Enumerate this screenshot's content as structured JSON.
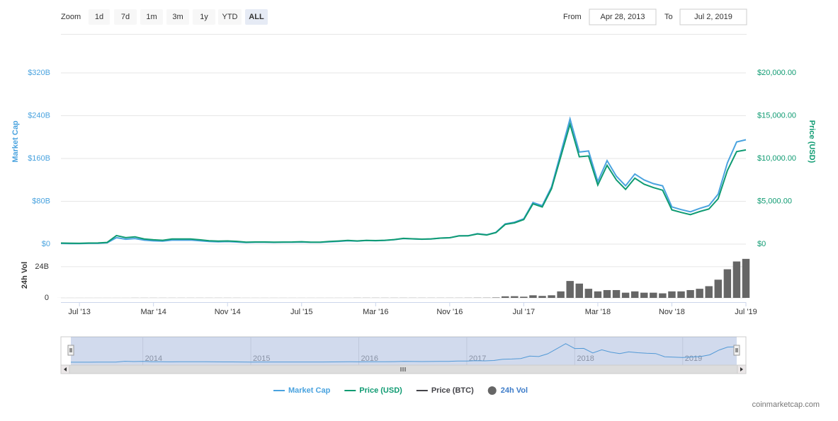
{
  "toolbar": {
    "zoom_label": "Zoom",
    "buttons": [
      "1d",
      "7d",
      "1m",
      "3m",
      "1y",
      "YTD",
      "ALL"
    ],
    "from_label": "From",
    "from_value": "Apr 28, 2013",
    "to_label": "To",
    "to_value": "Jul 2, 2019"
  },
  "credits": "coinmarketcap.com",
  "chart_data": {
    "type": "line",
    "x": [
      "2013-05",
      "2013-06",
      "2013-07",
      "2013-08",
      "2013-09",
      "2013-10",
      "2013-11",
      "2013-12",
      "2014-01",
      "2014-02",
      "2014-03",
      "2014-04",
      "2014-05",
      "2014-06",
      "2014-07",
      "2014-08",
      "2014-09",
      "2014-10",
      "2014-11",
      "2014-12",
      "2015-01",
      "2015-02",
      "2015-03",
      "2015-04",
      "2015-05",
      "2015-06",
      "2015-07",
      "2015-08",
      "2015-09",
      "2015-10",
      "2015-11",
      "2015-12",
      "2016-01",
      "2016-02",
      "2016-03",
      "2016-04",
      "2016-05",
      "2016-06",
      "2016-07",
      "2016-08",
      "2016-09",
      "2016-10",
      "2016-11",
      "2016-12",
      "2017-01",
      "2017-02",
      "2017-03",
      "2017-04",
      "2017-05",
      "2017-06",
      "2017-07",
      "2017-08",
      "2017-09",
      "2017-10",
      "2017-11",
      "2017-12",
      "2018-01",
      "2018-02",
      "2018-03",
      "2018-04",
      "2018-05",
      "2018-06",
      "2018-07",
      "2018-08",
      "2018-09",
      "2018-10",
      "2018-11",
      "2018-12",
      "2019-01",
      "2019-02",
      "2019-03",
      "2019-04",
      "2019-05",
      "2019-06",
      "2019-07"
    ],
    "xlim": [
      "2013-05",
      "2019-07"
    ],
    "xticks": [
      {
        "value": "2013-07",
        "label": "Jul '13"
      },
      {
        "value": "2014-03",
        "label": "Mar '14"
      },
      {
        "value": "2014-11",
        "label": "Nov '14"
      },
      {
        "value": "2015-07",
        "label": "Jul '15"
      },
      {
        "value": "2016-03",
        "label": "Mar '16"
      },
      {
        "value": "2016-11",
        "label": "Nov '16"
      },
      {
        "value": "2017-07",
        "label": "Jul '17"
      },
      {
        "value": "2018-03",
        "label": "Mar '18"
      },
      {
        "value": "2018-11",
        "label": "Nov '18"
      },
      {
        "value": "2019-07",
        "label": "Jul '19"
      }
    ],
    "ylabel": "Market Cap",
    "ylim": [
      0,
      320
    ],
    "yticks": [
      {
        "value": 0,
        "label": "$0"
      },
      {
        "value": 80,
        "label": "$80B"
      },
      {
        "value": 160,
        "label": "$160B"
      },
      {
        "value": 240,
        "label": "$240B"
      },
      {
        "value": 320,
        "label": "$320B"
      }
    ],
    "y2label": "Price (USD)",
    "y2lim": [
      0,
      20000
    ],
    "y2ticks": [
      {
        "value": 0,
        "label": "$0"
      },
      {
        "value": 5000,
        "label": "$5,000.00"
      },
      {
        "value": 10000,
        "label": "$10,000.00"
      },
      {
        "value": 15000,
        "label": "$15,000.00"
      },
      {
        "value": 20000,
        "label": "$20,000.00"
      }
    ],
    "y3label": "24h Vol",
    "y3lim": [
      0,
      37
    ],
    "y3ticks": [
      0,
      {
        "value": 24,
        "label": "24B"
      }
    ],
    "grid": true,
    "series": [
      {
        "name": "Market Cap",
        "color": "#4aa3df",
        "axis": "y",
        "values": [
          1.3,
          1.1,
          1.1,
          1.4,
          1.5,
          2.4,
          12,
          9.1,
          10.4,
          7.4,
          6.1,
          5.5,
          7.4,
          7.4,
          7.5,
          6.2,
          5.0,
          4.4,
          4.7,
          4.0,
          3.0,
          3.5,
          3.5,
          3.2,
          3.4,
          3.5,
          3.9,
          3.3,
          3.3,
          4.4,
          5.2,
          6.3,
          5.6,
          6.7,
          6.4,
          7.0,
          8.3,
          10.5,
          9.8,
          9.1,
          9.7,
          11.2,
          11.9,
          15.5,
          15.8,
          19.4,
          17.5,
          22.1,
          37.8,
          40.8,
          47.3,
          77.7,
          71.9,
          107,
          170,
          234,
          172,
          174,
          117,
          156,
          127,
          109,
          131,
          120,
          113,
          109,
          69.5,
          64.5,
          60.4,
          66.6,
          72.0,
          93.3,
          152,
          191,
          195
        ]
      },
      {
        "name": "Price (USD)",
        "color": "#0f9b72",
        "axis": "y2",
        "values": [
          120,
          100,
          95,
          120,
          130,
          200,
          1000,
          750,
          850,
          600,
          500,
          450,
          600,
          600,
          600,
          500,
          400,
          350,
          375,
          320,
          220,
          250,
          250,
          230,
          240,
          250,
          280,
          230,
          235,
          310,
          360,
          430,
          370,
          440,
          415,
          450,
          530,
          670,
          620,
          575,
          610,
          700,
          740,
          960,
          970,
          1190,
          1070,
          1350,
          2300,
          2480,
          2870,
          4700,
          4340,
          6470,
          10200,
          14000,
          10200,
          10300,
          6900,
          9200,
          7500,
          6400,
          7700,
          7000,
          6600,
          6300,
          4000,
          3700,
          3450,
          3800,
          4100,
          5300,
          8600,
          10800,
          11000
        ]
      },
      {
        "name": "Price (BTC)",
        "color": "#434348"
      },
      {
        "name": "24h Vol",
        "color": "#666666",
        "axis": "y3",
        "type": "column",
        "values": [
          0.02,
          0.02,
          0.02,
          0.02,
          0.02,
          0.02,
          0.02,
          0.02,
          0.05,
          0.05,
          0.05,
          0.05,
          0.05,
          0.05,
          0.05,
          0.05,
          0.05,
          0.05,
          0.05,
          0.05,
          0.03,
          0.03,
          0.03,
          0.03,
          0.03,
          0.03,
          0.03,
          0.03,
          0.03,
          0.03,
          0.03,
          0.03,
          0.08,
          0.08,
          0.08,
          0.08,
          0.08,
          0.08,
          0.08,
          0.08,
          0.08,
          0.08,
          0.08,
          0.08,
          0.1,
          0.15,
          0.15,
          0.3,
          1.2,
          1.3,
          0.9,
          2,
          1.5,
          2,
          5,
          13,
          11,
          7,
          5,
          6,
          6,
          4,
          5,
          4,
          4,
          3.5,
          5,
          5,
          6,
          7,
          9,
          14,
          22,
          28,
          30
        ]
      }
    ],
    "navigator_labels": [
      {
        "value": "2014-01",
        "label": "2014"
      },
      {
        "value": "2015-01",
        "label": "2015"
      },
      {
        "value": "2016-01",
        "label": "2016"
      },
      {
        "value": "2017-01",
        "label": "2017"
      },
      {
        "value": "2018-01",
        "label": "2018"
      },
      {
        "value": "2019-01",
        "label": "2019"
      }
    ]
  }
}
